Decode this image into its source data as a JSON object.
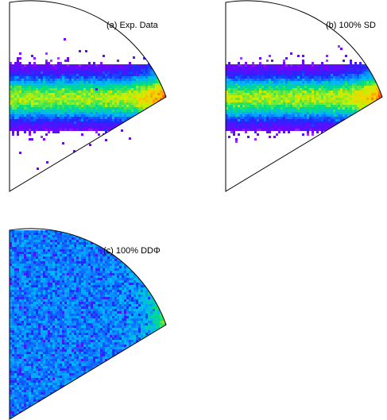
{
  "chart_data": [
    {
      "type": "heatmap",
      "panel_label": "(a) Exp. Data",
      "pattern": "band",
      "sparse_outliers": true,
      "colormap": [
        "#ffffff",
        "#7a00ff",
        "#1a2cff",
        "#00b4ff",
        "#00e07a",
        "#c8f000",
        "#ffcc00",
        "#ff3300"
      ]
    },
    {
      "type": "heatmap",
      "panel_label": "(b) 100% SD",
      "pattern": "band",
      "sparse_outliers": false,
      "colormap": [
        "#ffffff",
        "#7a00ff",
        "#1a2cff",
        "#00b4ff",
        "#00e07a",
        "#c8f000",
        "#ffcc00",
        "#ff3300"
      ]
    },
    {
      "type": "heatmap",
      "panel_label": "(c) 100% DDΦ",
      "pattern": "uniform",
      "sparse_outliers": false,
      "colormap": [
        "#ffffff",
        "#7a00ff",
        "#1a2cff",
        "#00b4ff",
        "#00e07a",
        "#c8f000",
        "#ffcc00",
        "#ff3300"
      ]
    }
  ]
}
